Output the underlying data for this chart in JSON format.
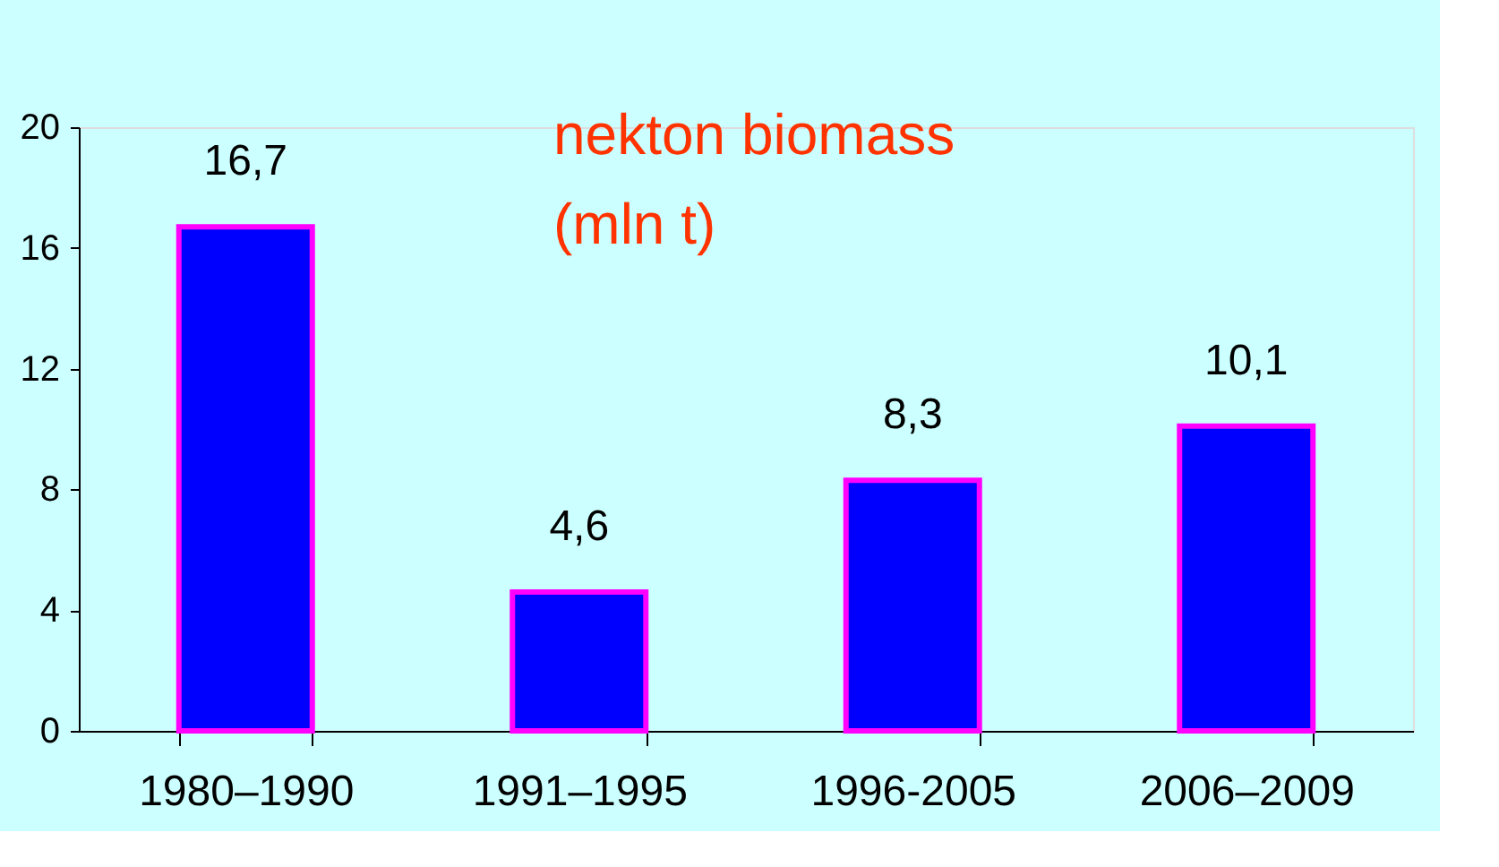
{
  "chart_data": {
    "type": "bar",
    "title": "nekton biomass\n(mln t)",
    "categories": [
      "1980–1990",
      "1991–1995",
      "1996-2005",
      "2006–2009"
    ],
    "values": [
      16.7,
      4.6,
      8.3,
      10.1
    ],
    "value_labels": [
      "16,7",
      "4,6",
      "8,3",
      "10,1"
    ],
    "color": "#0000ff",
    "ylim": [
      0,
      20
    ],
    "yticks": [
      0,
      4,
      8,
      12,
      16,
      20
    ],
    "grid": false
  }
}
